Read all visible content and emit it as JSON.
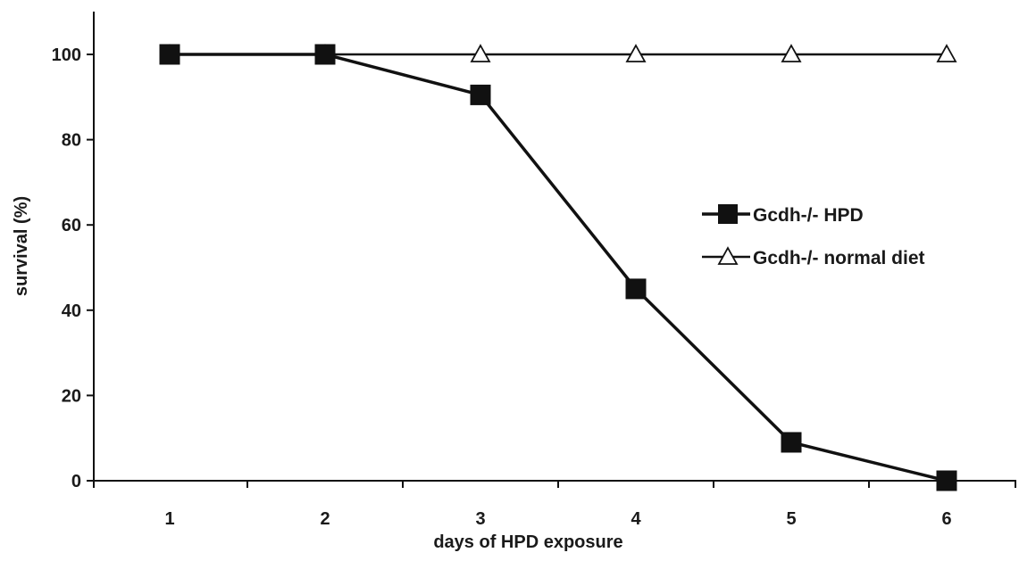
{
  "chart_data": {
    "type": "line",
    "title": "",
    "xlabel": "days of HPD exposure",
    "ylabel": "survival (%)",
    "x": [
      1,
      2,
      3,
      4,
      5,
      6
    ],
    "ylim": [
      0,
      100
    ],
    "yticks": [
      0,
      20,
      40,
      60,
      80,
      100
    ],
    "grid": false,
    "legend_position": "right",
    "series": [
      {
        "name": "Gcdh-/- HPD",
        "marker": "filled-square",
        "color": "#111111",
        "values": [
          100,
          100,
          90.5,
          45,
          9,
          0
        ]
      },
      {
        "name": "Gcdh-/- normal diet",
        "marker": "open-triangle",
        "color": "#111111",
        "values": [
          100,
          100,
          100,
          100,
          100,
          100
        ]
      }
    ]
  }
}
